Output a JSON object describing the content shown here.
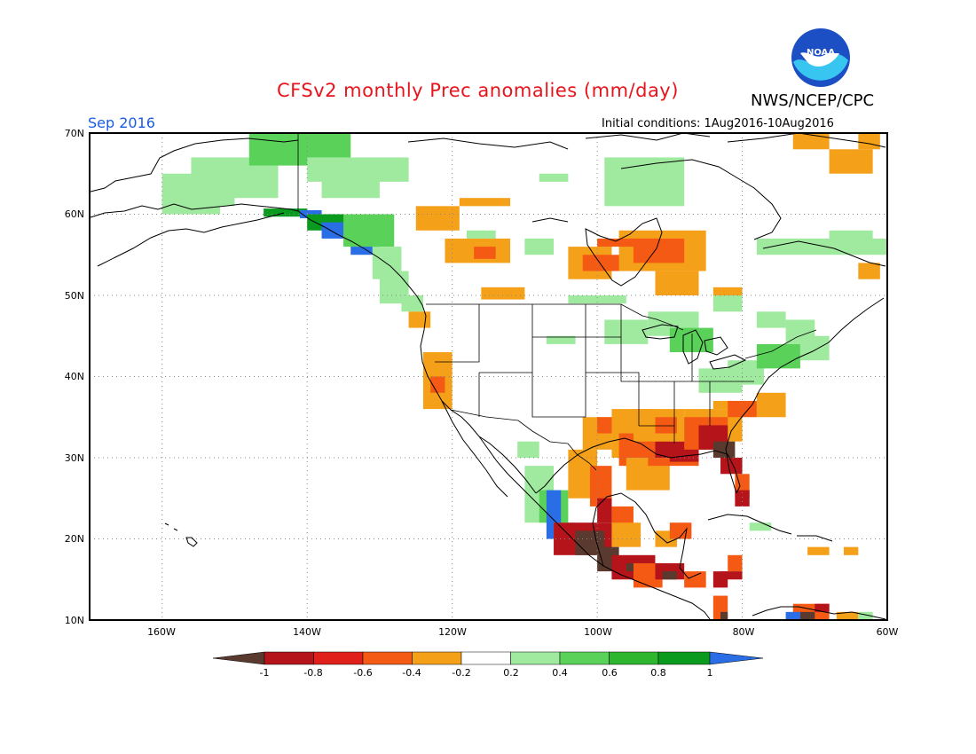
{
  "header": {
    "title": "CFSv2 monthly Prec anomalies (mm/day)",
    "agency": "NWS/NCEP/CPC",
    "logo_text": "NOAA",
    "month": "Sep 2016",
    "initial_conditions": "Initial conditions: 1Aug2016-10Aug2016"
  },
  "colors": {
    "title": "#e8141c",
    "month": "#1a5be0",
    "logo_blue": "#1d4fc4",
    "logo_cyan": "#38c6f0",
    "land_outline": "#000000",
    "grid": "#888888"
  },
  "axes": {
    "lat_labels": [
      "70N",
      "60N",
      "50N",
      "40N",
      "30N",
      "20N",
      "10N"
    ],
    "lon_labels": [
      "160W",
      "140W",
      "120W",
      "100W",
      "80W",
      "60W"
    ]
  },
  "colorbar": {
    "labels": [
      "-1",
      "-0.8",
      "-0.6",
      "-0.4",
      "-0.2",
      "0.2",
      "0.4",
      "0.6",
      "0.8",
      "1"
    ],
    "colors": [
      "#5a3a2e",
      "#b4141a",
      "#e0201a",
      "#f55a14",
      "#f5a019",
      "#ffffff",
      "#a0eaa0",
      "#5ad25a",
      "#2fb62f",
      "#0a9a1e",
      "#2a6ee6"
    ]
  },
  "anomaly_colors": {
    "m1": "#5a3a2e",
    "m8": "#b4141a",
    "m6": "#e0201a",
    "m4": "#f55a14",
    "m2": "#f5a019",
    "p2": "#a0eaa0",
    "p4": "#5ad25a",
    "p6": "#2fb62f",
    "p8": "#0a9a1e",
    "p10": "#2a6ee6"
  }
}
